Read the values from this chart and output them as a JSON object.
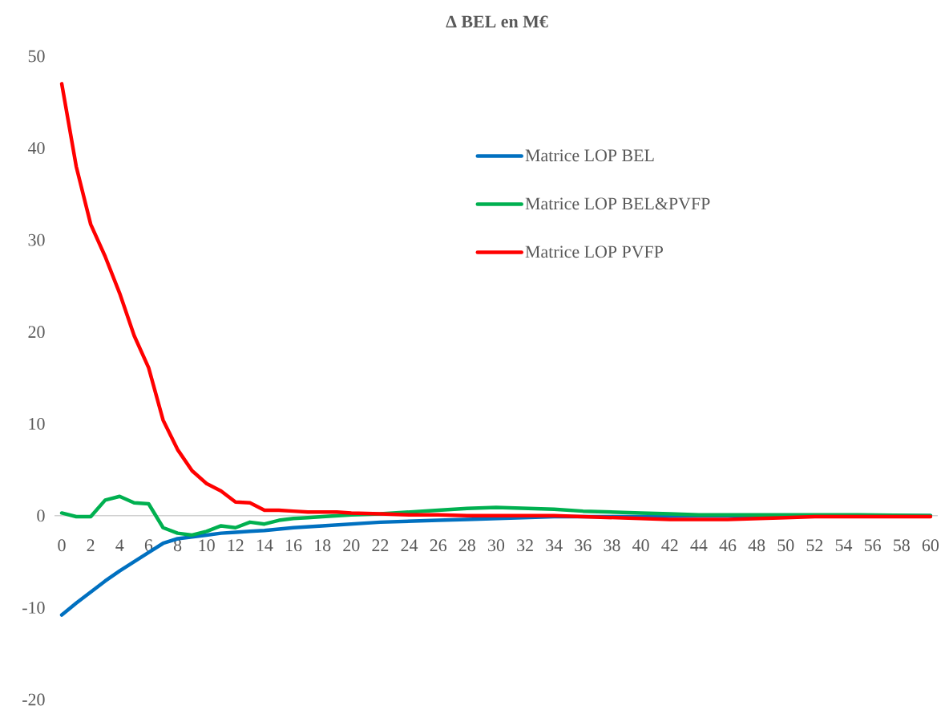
{
  "chart_data": {
    "type": "line",
    "title": "**Δ BEL en M€**",
    "xlim": [
      -0.5,
      60.5
    ],
    "xticks": [
      0,
      2,
      4,
      6,
      8,
      10,
      12,
      14,
      16,
      18,
      20,
      22,
      24,
      26,
      28,
      30,
      32,
      34,
      36,
      38,
      40,
      42,
      44,
      46,
      48,
      50,
      52,
      54,
      56,
      58,
      60
    ],
    "ylim": [
      -20,
      50
    ],
    "yticks": [
      -20,
      -10,
      0,
      10,
      20,
      30,
      40,
      50
    ],
    "grid": false,
    "legend": "top right",
    "marker": "none",
    "line_style": "solid",
    "series": [
      {
        "name": "Matrice LOP BEL",
        "color": "#0070c0",
        "x": [
          0,
          1,
          2,
          3,
          4,
          5,
          6,
          7,
          8,
          9,
          10,
          11,
          12,
          13,
          14,
          16,
          18,
          20,
          22,
          24,
          26,
          28,
          30,
          32,
          34,
          36,
          40,
          44,
          50,
          60
        ],
        "values": [
          -10.8,
          -9.5,
          -8.3,
          -7.1,
          -6,
          -5,
          -4,
          -3,
          -2.5,
          -2.3,
          -2.1,
          -1.9,
          -1.8,
          -1.7,
          -1.6,
          -1.3,
          -1.1,
          -0.9,
          -0.7,
          -0.6,
          -0.5,
          -0.4,
          -0.3,
          -0.2,
          -0.1,
          -0.1,
          -0.1,
          0,
          0,
          0
        ]
      },
      {
        "name": "Matrice LOP BEL&PVFP",
        "color": "#00b050",
        "x": [
          0,
          1,
          2,
          3,
          4,
          5,
          6,
          7,
          8,
          9,
          10,
          11,
          12,
          13,
          14,
          15,
          16,
          17,
          18,
          20,
          22,
          24,
          26,
          28,
          30,
          32,
          34,
          36,
          38,
          40,
          42,
          44,
          46,
          50,
          55,
          60
        ],
        "values": [
          0.3,
          -0.1,
          -0.1,
          1.7,
          2.1,
          1.4,
          1.3,
          -1.3,
          -1.9,
          -2.1,
          -1.7,
          -1.1,
          -1.3,
          -0.7,
          -0.9,
          -0.5,
          -0.3,
          -0.2,
          -0.1,
          0.1,
          0.2,
          0.4,
          0.6,
          0.8,
          0.9,
          0.8,
          0.7,
          0.5,
          0.4,
          0.3,
          0.2,
          0.1,
          0.1,
          0.1,
          0.1,
          0
        ]
      },
      {
        "name": "Matrice LOP PVFP",
        "color": "#ff0000",
        "x": [
          0,
          1,
          2,
          3,
          4,
          5,
          6,
          7,
          8,
          9,
          10,
          11,
          12,
          13,
          14,
          15,
          16,
          17,
          18,
          19,
          20,
          22,
          24,
          26,
          28,
          30,
          32,
          34,
          36,
          38,
          40,
          42,
          44,
          46,
          48,
          50,
          52,
          56,
          60
        ],
        "values": [
          47,
          38,
          31.7,
          28.2,
          24.2,
          19.6,
          16.1,
          10.4,
          7.2,
          4.9,
          3.5,
          2.7,
          1.5,
          1.4,
          0.6,
          0.6,
          0.5,
          0.4,
          0.4,
          0.4,
          0.3,
          0.2,
          0.1,
          0.1,
          0,
          0,
          0,
          0,
          -0.1,
          -0.2,
          -0.3,
          -0.4,
          -0.4,
          -0.4,
          -0.3,
          -0.2,
          -0.1,
          -0.1,
          -0.1
        ]
      }
    ]
  }
}
